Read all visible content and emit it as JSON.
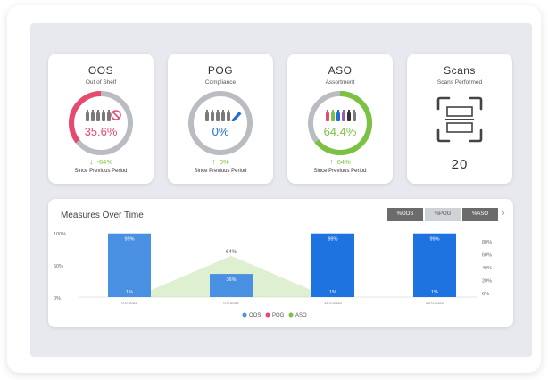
{
  "cards": {
    "oos": {
      "title": "OOS",
      "subtitle": "Out of Shelf",
      "value": "35.6%",
      "change": "-64%",
      "since": "Since Previous Period",
      "color": "#e8496e",
      "progress": 0.356
    },
    "pog": {
      "title": "POG",
      "subtitle": "Compliance",
      "value": "0%",
      "change": "0%",
      "since": "Since Previous Period",
      "color": "#1f6fd6",
      "progress": 0.0
    },
    "aso": {
      "title": "ASO",
      "subtitle": "Assortment",
      "value": "64.4%",
      "change": "64%",
      "since": "Since Previous Period",
      "color": "#7cc242",
      "progress": 0.644
    },
    "scans": {
      "title": "Scans",
      "subtitle": "Scans Performed",
      "count": "20"
    }
  },
  "chart": {
    "title": "Measures Over Time",
    "toggles": [
      "%OOS",
      "%POG",
      "%ASO"
    ],
    "next_icon": "chevron-right-icon"
  },
  "chart_data": {
    "type": "bar",
    "categories": [
      "0.0.2022",
      "0.0.2022",
      "19.0.2022",
      "20.0.2022"
    ],
    "series": [
      {
        "name": "OOS",
        "values": [
          99,
          36,
          99,
          99
        ],
        "color": "#4a90e2"
      },
      {
        "name": "POG",
        "values": [
          1,
          0,
          1,
          1
        ],
        "color": "#e8496e"
      },
      {
        "name": "ASO",
        "values": [
          0,
          64,
          0,
          0
        ],
        "color": "#7cc242"
      }
    ],
    "bar_labels": [
      "99%",
      "36%",
      "99%",
      "99%"
    ],
    "inner_labels": [
      "1%",
      "",
      "1%",
      "1%"
    ],
    "area_label": "64%",
    "left_ticks": [
      "100%",
      "50%",
      "0%"
    ],
    "right_ticks": [
      "80%",
      "60%",
      "40%",
      "20%",
      "0%"
    ],
    "legend": [
      "OOS",
      "POG",
      "ASO"
    ],
    "ylim": [
      0,
      100
    ]
  }
}
